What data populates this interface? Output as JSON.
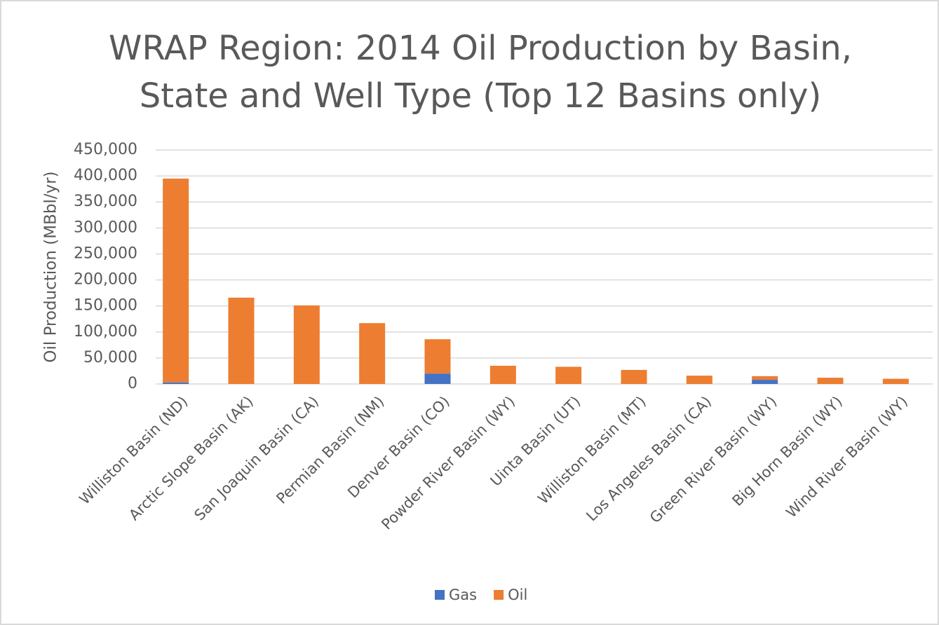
{
  "chart_data": {
    "type": "stacked_bar",
    "title": [
      "WRAP Region: 2014 Oil Production by Basin,",
      "State and Well Type (Top 12 Basins only)"
    ],
    "y_label": "Oil Production (MBbl/yr)",
    "categories": [
      "Williston Basin (ND)",
      "Arctic Slope Basin (AK)",
      "San Joaquin Basin (CA)",
      "Permian Basin (NM)",
      "Denver Basin (CO)",
      "Powder River Basin (WY)",
      "Uinta Basin (UT)",
      "Williston Basin (MT)",
      "Los Angeles Basin (CA)",
      "Green River Basin (WY)",
      "Big Horn Basin (WY)",
      "Wind River Basin (WY)"
    ],
    "series": [
      {
        "name": "Gas",
        "color": "#4472c4",
        "values": [
          3000,
          0,
          0,
          0,
          20000,
          0,
          0,
          0,
          0,
          8000,
          0,
          0
        ]
      },
      {
        "name": "Oil",
        "color": "#ed7d31",
        "values": [
          392000,
          166000,
          151000,
          117000,
          66000,
          35000,
          33000,
          27000,
          16000,
          7000,
          12000,
          10000
        ]
      }
    ],
    "ylim": [
      0,
      450000
    ],
    "yticks": [
      0,
      {
        "value": 50000,
        "label": "50,000"
      },
      {
        "value": 100000,
        "label": "100,000"
      },
      {
        "value": 150000,
        "label": "150,000"
      },
      {
        "value": 200000,
        "label": "200,000"
      },
      {
        "value": 250000,
        "label": "250,000"
      },
      {
        "value": 300000,
        "label": "300,000"
      },
      {
        "value": 350000,
        "label": "350,000"
      },
      {
        "value": 400000,
        "label": "400,000"
      },
      {
        "value": 450000,
        "label": "450,000"
      }
    ],
    "grid": true,
    "legend": "bottom"
  }
}
